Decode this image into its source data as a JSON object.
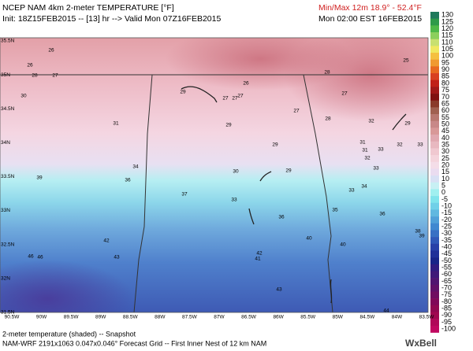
{
  "header": {
    "title": "NCEP NAM 4km 2-meter TEMPERATURE [°F]",
    "init": "Init: 18Z15FEB2015 -- [13] hr --> Valid Mon 07Z16FEB2015",
    "minmax": "Min/Max 12m  18.9° - 52.4°F",
    "valid": "Mon 02:00 EST 16FEB2015"
  },
  "colorbar": {
    "labels": [
      130,
      125,
      120,
      115,
      110,
      105,
      100,
      95,
      90,
      85,
      80,
      75,
      70,
      65,
      60,
      55,
      50,
      45,
      40,
      35,
      30,
      25,
      20,
      15,
      10,
      5,
      0,
      -5,
      -10,
      -15,
      -20,
      -25,
      -30,
      -35,
      -40,
      -45,
      -50,
      -55,
      -60,
      -65,
      -70,
      -75,
      -80,
      -85,
      -90,
      -95,
      -100
    ],
    "colors": [
      "#1f7a5c",
      "#2e9a4a",
      "#4fb848",
      "#8ccf5c",
      "#c8e070",
      "#f0e860",
      "#f5c040",
      "#f09a30",
      "#e86a20",
      "#d84020",
      "#c02018",
      "#a01818",
      "#801010",
      "#8a3a2a",
      "#a06050",
      "#b87870",
      "#c88888",
      "#d89898",
      "#e0a8b0",
      "#e8b8c0",
      "#f0c8d0",
      "#f4d4dc",
      "#f4dde8",
      "#eadcf0",
      "#d8e0f4",
      "#c8f0f4",
      "#a0f0f0",
      "#80e4ec",
      "#70d0e8",
      "#60b8e0",
      "#50a0d8",
      "#4088d0",
      "#3870c4",
      "#3058b8",
      "#2840a8",
      "#203098",
      "#182488",
      "#301c80",
      "#401878",
      "#501470",
      "#601068",
      "#700c60",
      "#800858",
      "#900850",
      "#a00850",
      "#b00858",
      "#c00860"
    ]
  },
  "map": {
    "lat_labels": [
      "35.5N",
      "35N",
      "34.5N",
      "34N",
      "33.5N",
      "33N",
      "32.5N",
      "32N",
      "31.5N"
    ],
    "lon_labels": [
      "90.5W",
      "90W",
      "89.5W",
      "89W",
      "88.5W",
      "88W",
      "87.5W",
      "87W",
      "86.5W",
      "86W",
      "85.5W",
      "85W",
      "84.5W",
      "84W",
      "83.5W"
    ],
    "values": [
      26,
      26,
      27,
      28,
      30,
      25,
      28,
      26,
      29,
      27,
      27,
      27,
      27,
      27,
      28,
      31,
      29,
      32,
      29,
      29,
      31,
      32,
      33,
      31,
      33,
      32,
      34,
      30,
      29,
      39,
      36,
      33,
      34,
      33,
      37,
      33,
      35,
      36,
      36,
      40,
      38,
      39,
      42,
      40,
      42,
      41,
      43,
      46,
      46,
      43,
      44
    ]
  },
  "footer": {
    "description": "2-meter temperature (shaded) -- Snapshot",
    "grid": "NAM-WRF 2191x1063 0.047x0.046° Forecast Grid -- First Inner Nest of 12 km NAM",
    "brand": "WxBell"
  }
}
